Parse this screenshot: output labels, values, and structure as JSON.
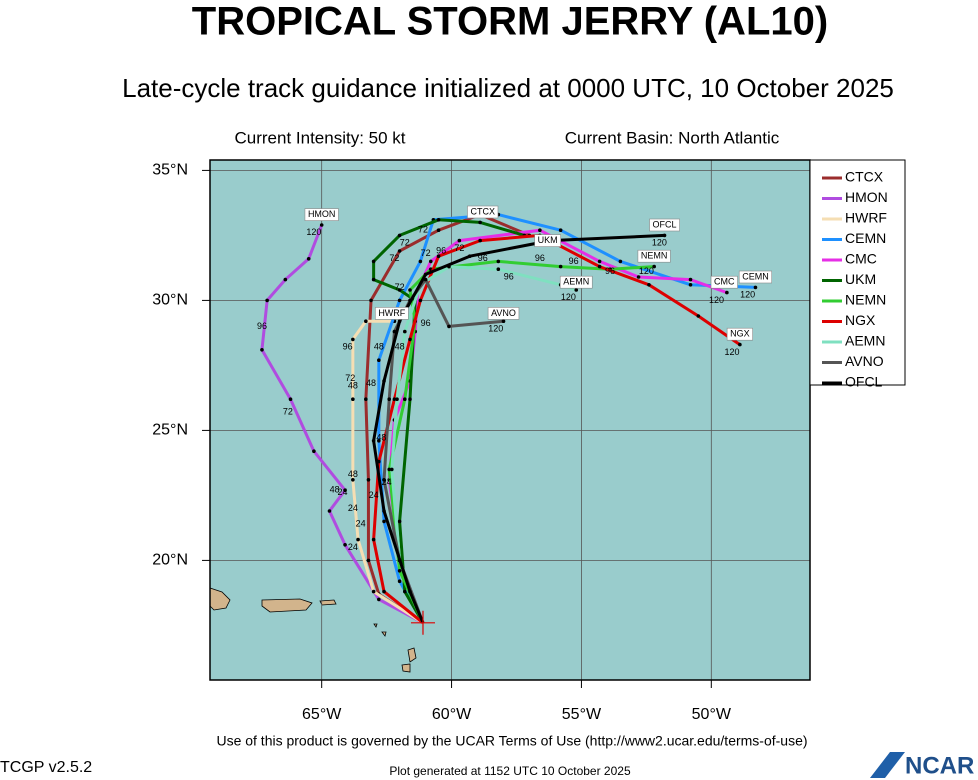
{
  "header": {
    "title": "TROPICAL STORM JERRY (AL10)",
    "subtitle": "Late-cycle track guidance initialized at 0000 UTC, 10 October 2025"
  },
  "info": {
    "intensity": "Current Intensity: 50 kt",
    "basin": "Current Basin: North Atlantic"
  },
  "map": {
    "lonlim": [
      -69.3,
      -46.2
    ],
    "latlim": [
      15.4,
      35.4
    ],
    "lonticks": [
      {
        "value": -65,
        "label": "65°W"
      },
      {
        "value": -60,
        "label": "60°W"
      },
      {
        "value": -55,
        "label": "55°W"
      },
      {
        "value": -50,
        "label": "50°W"
      }
    ],
    "latticks": [
      {
        "value": 20,
        "label": "20°N"
      },
      {
        "value": 25,
        "label": "25°N"
      },
      {
        "value": 30,
        "label": "30°N"
      },
      {
        "value": 35,
        "label": "35°N"
      }
    ],
    "grid": true,
    "tracks": [
      {
        "name": "CTCX",
        "color": "#9b2d2d",
        "points": [
          [
            -61.1,
            17.6
          ],
          [
            -62.8,
            18.7
          ],
          [
            -63.2,
            20.0
          ],
          [
            -63.2,
            23.1
          ],
          [
            -63.3,
            26.2
          ],
          [
            -63.1,
            30.0
          ],
          [
            -62.0,
            31.9
          ],
          [
            -60.5,
            32.7
          ],
          [
            -58.9,
            33.3
          ],
          [
            -57.0,
            32.5
          ]
        ]
      },
      {
        "name": "HMON",
        "color": "#b04ce0",
        "points": [
          [
            -61.1,
            17.6
          ],
          [
            -62.8,
            18.5
          ],
          [
            -64.1,
            20.6
          ],
          [
            -64.7,
            21.9
          ],
          [
            -64.1,
            22.7
          ],
          [
            -65.3,
            24.2
          ],
          [
            -66.2,
            26.2
          ],
          [
            -67.3,
            28.1
          ],
          [
            -67.1,
            30.0
          ],
          [
            -66.4,
            30.8
          ],
          [
            -65.5,
            31.6
          ],
          [
            -65.0,
            32.9
          ]
        ]
      },
      {
        "name": "HWRF",
        "color": "#f5deb3",
        "points": [
          [
            -61.1,
            17.6
          ],
          [
            -63.0,
            18.8
          ],
          [
            -63.6,
            20.8
          ],
          [
            -63.8,
            23.1
          ],
          [
            -63.8,
            26.2
          ],
          [
            -63.8,
            28.5
          ],
          [
            -63.3,
            29.2
          ],
          [
            -62.2,
            29.2
          ]
        ]
      },
      {
        "name": "CEMN",
        "color": "#1e90ff",
        "points": [
          [
            -61.1,
            17.6
          ],
          [
            -62.0,
            19.2
          ],
          [
            -62.6,
            21.5
          ],
          [
            -62.8,
            24.6
          ],
          [
            -62.8,
            27.7
          ],
          [
            -62.0,
            30.0
          ],
          [
            -61.2,
            31.5
          ],
          [
            -60.7,
            33.1
          ],
          [
            -58.2,
            33.3
          ],
          [
            -55.8,
            32.7
          ],
          [
            -53.5,
            31.5
          ],
          [
            -50.8,
            30.6
          ],
          [
            -48.3,
            30.5
          ]
        ]
      },
      {
        "name": "CMC",
        "color": "#e62ee6",
        "points": [
          [
            -61.1,
            17.6
          ],
          [
            -62.0,
            20.0
          ],
          [
            -62.4,
            23.1
          ],
          [
            -62.2,
            25.4
          ],
          [
            -61.6,
            26.9
          ],
          [
            -61.4,
            28.8
          ],
          [
            -61.3,
            30.4
          ],
          [
            -60.8,
            31.5
          ],
          [
            -59.7,
            32.3
          ],
          [
            -56.6,
            32.7
          ],
          [
            -54.3,
            31.5
          ],
          [
            -52.8,
            30.9
          ],
          [
            -50.8,
            30.8
          ],
          [
            -49.4,
            30.3
          ]
        ]
      },
      {
        "name": "UKM",
        "color": "#006400",
        "points": [
          [
            -61.1,
            17.6
          ],
          [
            -61.8,
            18.8
          ],
          [
            -62.0,
            21.5
          ],
          [
            -61.6,
            26.2
          ],
          [
            -61.4,
            30.0
          ],
          [
            -62.0,
            30.4
          ],
          [
            -63.0,
            30.8
          ],
          [
            -63.0,
            31.5
          ],
          [
            -62.0,
            32.5
          ],
          [
            -60.5,
            33.1
          ],
          [
            -58.9,
            33.0
          ],
          [
            -57.2,
            32.5
          ]
        ]
      },
      {
        "name": "NEMN",
        "color": "#32cd32",
        "points": [
          [
            -61.1,
            17.6
          ],
          [
            -62.0,
            19.6
          ],
          [
            -62.4,
            23.5
          ],
          [
            -61.8,
            26.2
          ],
          [
            -61.4,
            29.2
          ],
          [
            -61.6,
            30.4
          ],
          [
            -60.8,
            31.2
          ],
          [
            -58.2,
            31.5
          ],
          [
            -55.8,
            31.3
          ],
          [
            -53.9,
            31.2
          ],
          [
            -52.2,
            31.3
          ]
        ]
      },
      {
        "name": "NGX",
        "color": "#dd0000",
        "points": [
          [
            -61.1,
            17.6
          ],
          [
            -62.6,
            18.8
          ],
          [
            -63.0,
            20.8
          ],
          [
            -62.8,
            23.8
          ],
          [
            -62.2,
            26.2
          ],
          [
            -61.6,
            28.5
          ],
          [
            -61.2,
            30.0
          ],
          [
            -60.5,
            31.7
          ],
          [
            -58.9,
            32.3
          ],
          [
            -56.6,
            32.5
          ],
          [
            -54.3,
            31.3
          ],
          [
            -52.4,
            30.6
          ],
          [
            -50.5,
            29.4
          ],
          [
            -48.9,
            28.3
          ]
        ]
      },
      {
        "name": "AEMN",
        "color": "#7fe0c0",
        "points": [
          [
            -61.1,
            17.6
          ],
          [
            -62.0,
            20.0
          ],
          [
            -62.3,
            23.5
          ],
          [
            -62.1,
            26.2
          ],
          [
            -61.8,
            28.8
          ],
          [
            -61.2,
            30.6
          ],
          [
            -60.1,
            31.3
          ],
          [
            -58.2,
            31.2
          ],
          [
            -55.8,
            30.6
          ],
          [
            -55.2,
            30.4
          ]
        ]
      },
      {
        "name": "AVNO",
        "color": "#555555",
        "points": [
          [
            -61.1,
            17.6
          ],
          [
            -62.0,
            20.0
          ],
          [
            -62.6,
            23.1
          ],
          [
            -62.4,
            26.2
          ],
          [
            -62.2,
            28.8
          ],
          [
            -61.6,
            30.0
          ],
          [
            -61.0,
            30.8
          ],
          [
            -60.1,
            29.0
          ],
          [
            -58.0,
            29.2
          ]
        ]
      },
      {
        "name": "OFCL",
        "color": "#000000",
        "points": [
          [
            -61.1,
            17.6
          ],
          [
            -61.6,
            18.8
          ],
          [
            -62.6,
            21.9
          ],
          [
            -63.0,
            24.6
          ],
          [
            -62.6,
            26.9
          ],
          [
            -62.0,
            29.2
          ],
          [
            -61.0,
            31.0
          ],
          [
            -59.3,
            31.7
          ],
          [
            -56.2,
            32.3
          ],
          [
            -51.8,
            32.5
          ]
        ]
      }
    ],
    "labels": [
      {
        "text": "HMON",
        "lon": -65.0,
        "lat": 33.3,
        "boxed": true
      },
      {
        "text": "CTCX",
        "lon": -58.8,
        "lat": 33.4,
        "boxed": true
      },
      {
        "text": "HWRF",
        "lon": -62.3,
        "lat": 29.5,
        "boxed": true
      },
      {
        "text": "UKM",
        "lon": -56.3,
        "lat": 32.3,
        "boxed": true
      },
      {
        "text": "OFCL",
        "lon": -51.8,
        "lat": 32.9,
        "boxed": true
      },
      {
        "text": "NEMN",
        "lon": -52.2,
        "lat": 31.7,
        "boxed": true
      },
      {
        "text": "AEMN",
        "lon": -55.2,
        "lat": 30.7,
        "boxed": true
      },
      {
        "text": "AVNO",
        "lon": -58.0,
        "lat": 29.5,
        "boxed": true
      },
      {
        "text": "CMC",
        "lon": -49.5,
        "lat": 30.7,
        "boxed": true
      },
      {
        "text": "CEMN",
        "lon": -48.3,
        "lat": 30.9,
        "boxed": true
      },
      {
        "text": "NGX",
        "lon": -48.9,
        "lat": 28.7,
        "boxed": true
      },
      {
        "text": "120",
        "lon": -65.3,
        "lat": 32.6,
        "boxed": false
      },
      {
        "text": "120",
        "lon": -52.0,
        "lat": 32.2,
        "boxed": false
      },
      {
        "text": "120",
        "lon": -52.5,
        "lat": 31.1,
        "boxed": false
      },
      {
        "text": "120",
        "lon": -55.5,
        "lat": 30.1,
        "boxed": false
      },
      {
        "text": "120",
        "lon": -58.3,
        "lat": 28.9,
        "boxed": false
      },
      {
        "text": "120",
        "lon": -49.8,
        "lat": 30.0,
        "boxed": false
      },
      {
        "text": "120",
        "lon": -48.6,
        "lat": 30.2,
        "boxed": false
      },
      {
        "text": "120",
        "lon": -49.2,
        "lat": 28.0,
        "boxed": false
      },
      {
        "text": "96",
        "lon": -67.3,
        "lat": 29.0,
        "boxed": false
      },
      {
        "text": "72",
        "lon": -66.3,
        "lat": 25.7,
        "boxed": false
      },
      {
        "text": "48",
        "lon": -64.5,
        "lat": 22.7,
        "boxed": false
      },
      {
        "text": "24",
        "lon": -64.2,
        "lat": 22.6,
        "boxed": false
      },
      {
        "text": "96",
        "lon": -64.0,
        "lat": 28.2,
        "boxed": false
      },
      {
        "text": "72",
        "lon": -63.9,
        "lat": 27.0,
        "boxed": false
      },
      {
        "text": "48",
        "lon": -63.8,
        "lat": 26.7,
        "boxed": false
      },
      {
        "text": "48",
        "lon": -63.8,
        "lat": 23.3,
        "boxed": false
      },
      {
        "text": "24",
        "lon": -63.8,
        "lat": 22.0,
        "boxed": false
      },
      {
        "text": "24",
        "lon": -63.8,
        "lat": 20.5,
        "boxed": false
      },
      {
        "text": "96",
        "lon": -61.0,
        "lat": 29.1,
        "boxed": false
      },
      {
        "text": "96",
        "lon": -58.8,
        "lat": 31.6,
        "boxed": false
      },
      {
        "text": "96",
        "lon": -57.8,
        "lat": 30.9,
        "boxed": false
      },
      {
        "text": "96",
        "lon": -56.6,
        "lat": 31.6,
        "boxed": false
      },
      {
        "text": "96",
        "lon": -55.3,
        "lat": 31.5,
        "boxed": false
      },
      {
        "text": "96",
        "lon": -53.9,
        "lat": 31.1,
        "boxed": false
      },
      {
        "text": "72",
        "lon": -61.8,
        "lat": 32.2,
        "boxed": false
      },
      {
        "text": "72",
        "lon": -62.2,
        "lat": 31.6,
        "boxed": false
      },
      {
        "text": "72",
        "lon": -61.0,
        "lat": 31.8,
        "boxed": false
      },
      {
        "text": "72",
        "lon": -59.7,
        "lat": 32.0,
        "boxed": false
      },
      {
        "text": "96",
        "lon": -60.4,
        "lat": 31.9,
        "boxed": false
      },
      {
        "text": "72",
        "lon": -61.1,
        "lat": 32.7,
        "boxed": false
      },
      {
        "text": "48",
        "lon": -62.7,
        "lat": 24.7,
        "boxed": false
      },
      {
        "text": "24",
        "lon": -63.0,
        "lat": 22.5,
        "boxed": false
      },
      {
        "text": "24",
        "lon": -63.5,
        "lat": 21.4,
        "boxed": false
      },
      {
        "text": "24",
        "lon": -62.5,
        "lat": 23.0,
        "boxed": false
      },
      {
        "text": "48",
        "lon": -62.0,
        "lat": 28.2,
        "boxed": false
      },
      {
        "text": "48",
        "lon": -62.8,
        "lat": 28.2,
        "boxed": false
      },
      {
        "text": "48",
        "lon": -63.1,
        "lat": 26.8,
        "boxed": false
      },
      {
        "text": "72",
        "lon": -62.0,
        "lat": 30.5,
        "boxed": false
      }
    ]
  },
  "footer": {
    "terms": "Use of this product is governed by the UCAR Terms of Use (http://www2.ucar.edu/terms-of-use)",
    "version": "TCGP v2.5.2",
    "generated": "Plot generated at 1152 UTC   10 October 2025",
    "logo": "NCAR"
  }
}
